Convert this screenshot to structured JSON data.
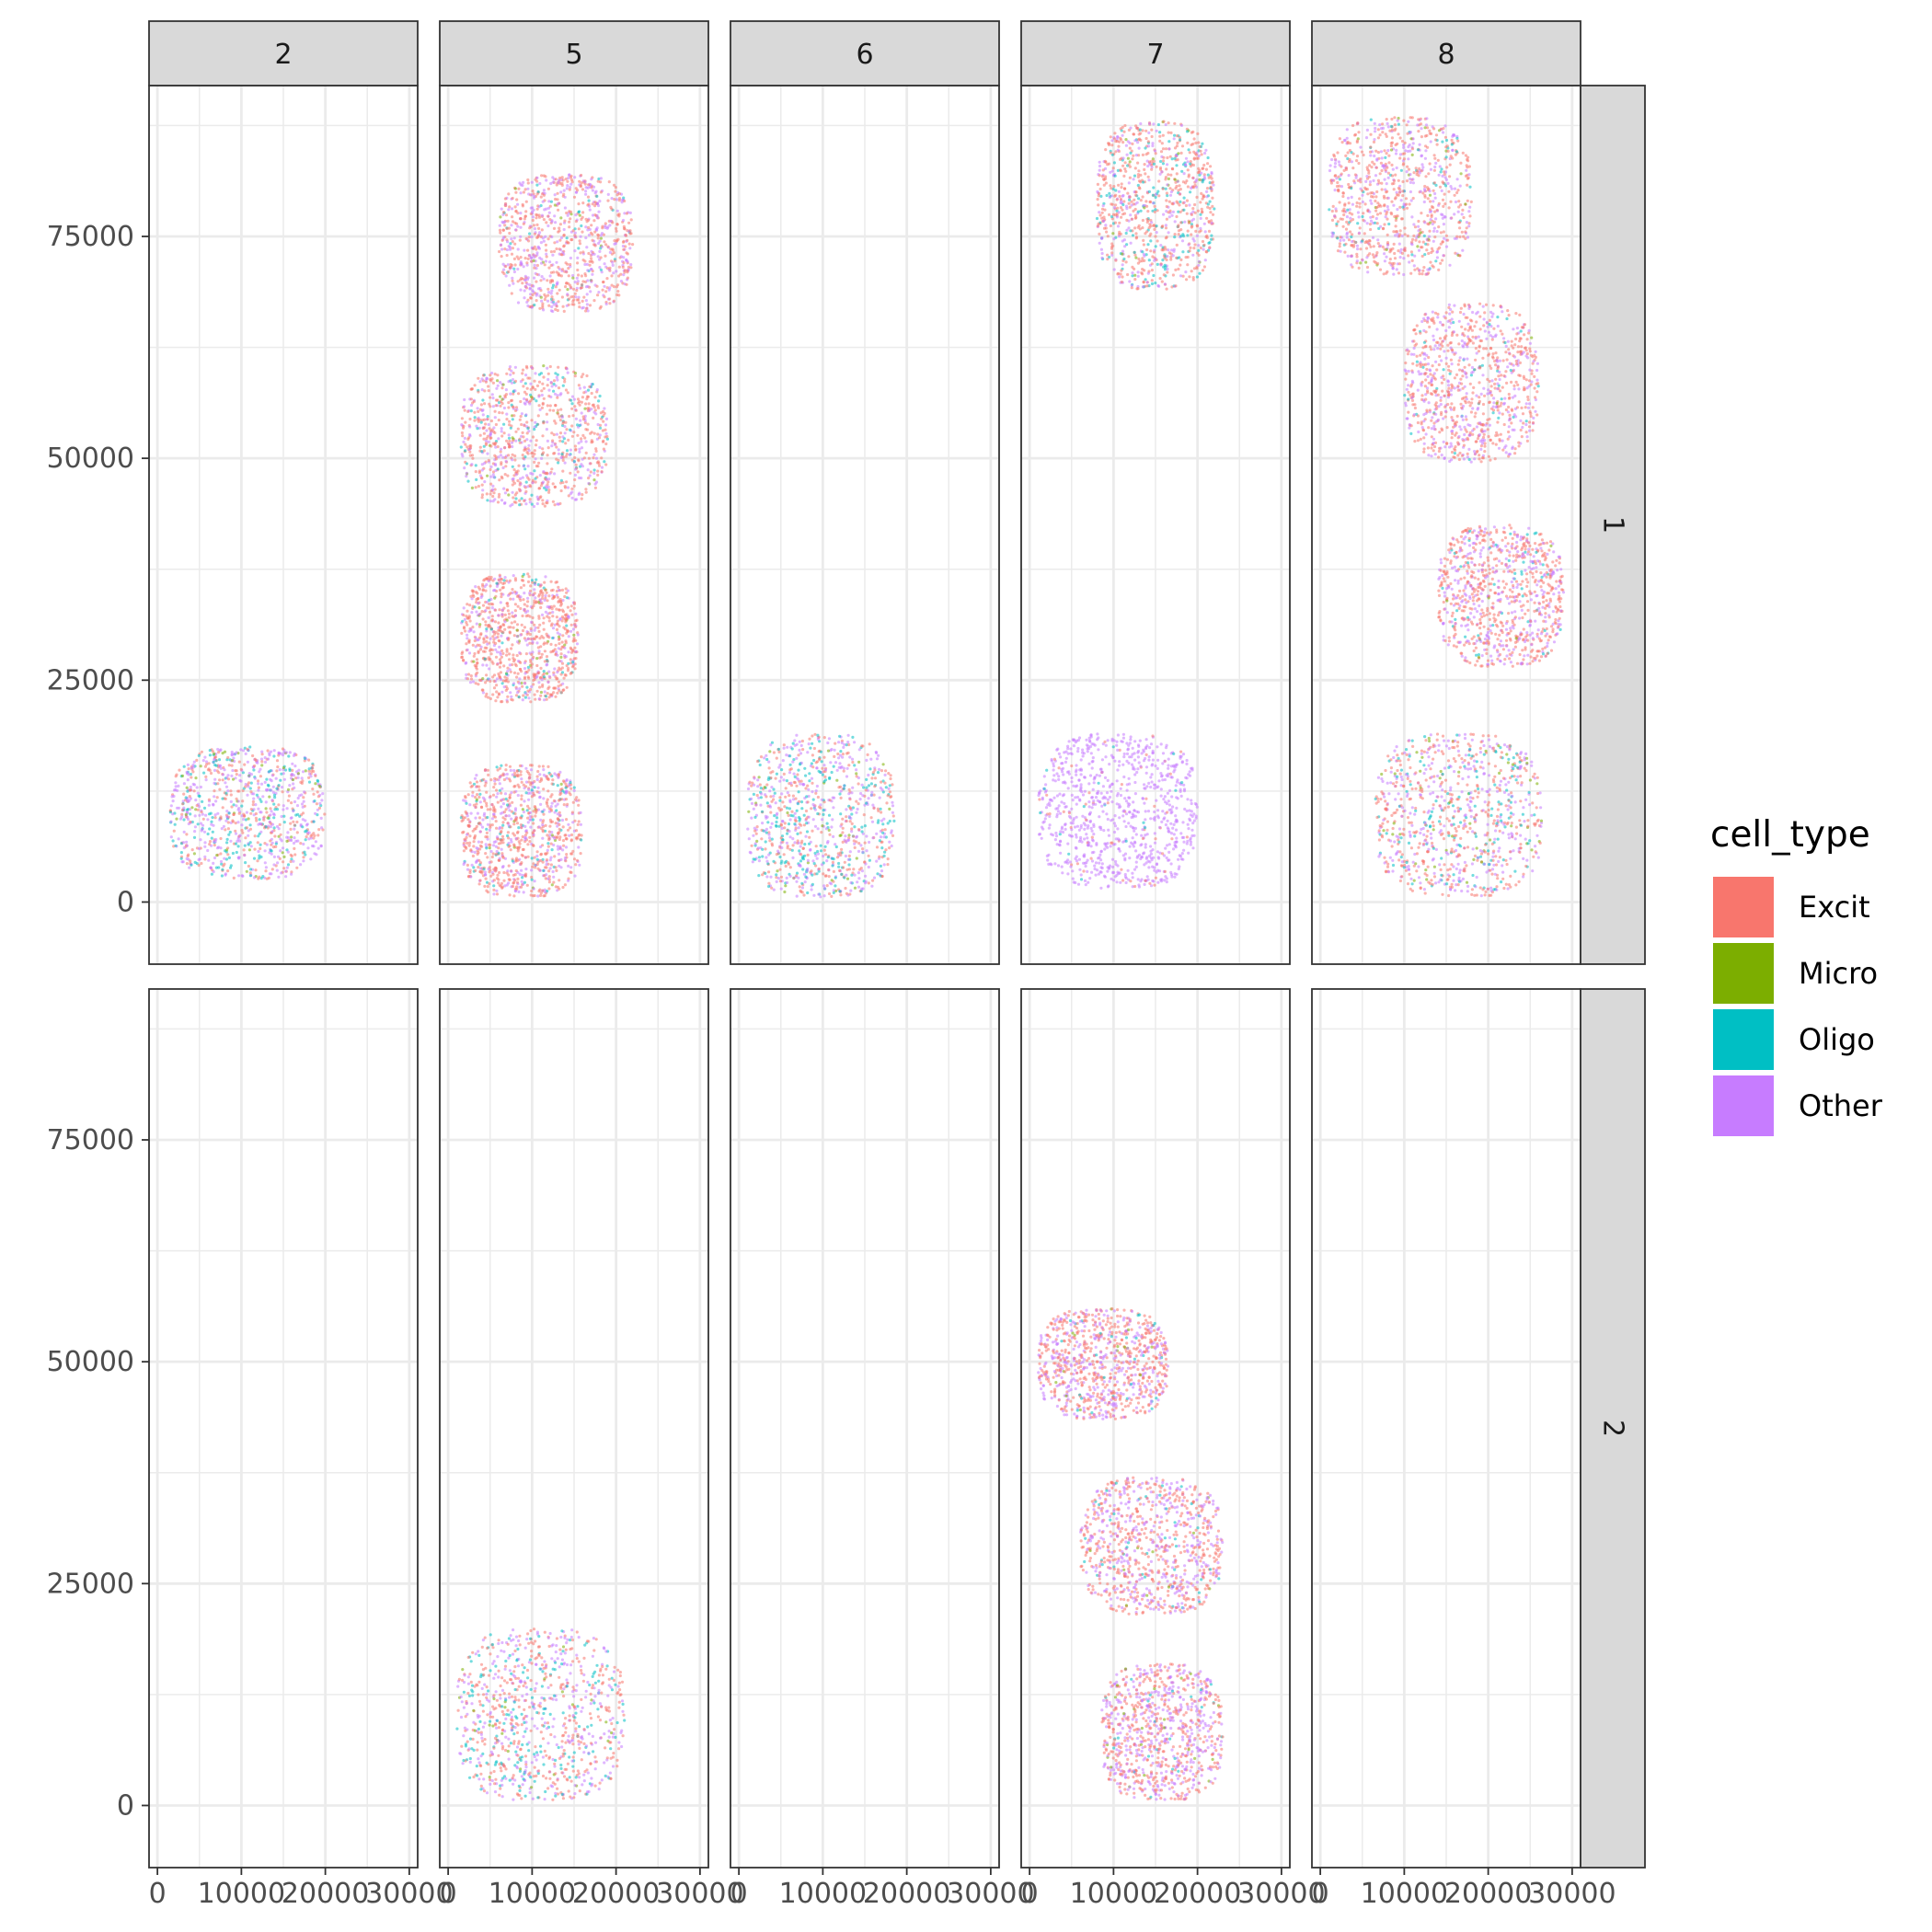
{
  "chart_data": {
    "type": "scatter",
    "title": "",
    "xlabel": "",
    "ylabel": "",
    "facet_columns": [
      "2",
      "5",
      "6",
      "7",
      "8"
    ],
    "facet_rows": [
      "1",
      "2"
    ],
    "xlim": [
      -1000,
      31000
    ],
    "ylim": [
      -7000,
      92000
    ],
    "x_ticks": [
      0,
      10000,
      20000,
      30000
    ],
    "x_tick_labels": [
      "0",
      "10000",
      "20000",
      "30000"
    ],
    "y_ticks": [
      0,
      25000,
      50000,
      75000
    ],
    "y_tick_labels": [
      "0",
      "25000",
      "50000",
      "75000"
    ],
    "grid": true,
    "legend": {
      "title": "cell_type",
      "position": "right",
      "entries": [
        {
          "label": "Excit",
          "color": "#F8766D"
        },
        {
          "label": "Micro",
          "color": "#7CAE00"
        },
        {
          "label": "Oligo",
          "color": "#00BFC4"
        },
        {
          "label": "Other",
          "color": "#C77CFF"
        }
      ]
    },
    "sections": [
      {
        "row": "1",
        "col": "2",
        "x_range": [
          1500,
          20000
        ],
        "y_range": [
          2500,
          17500
        ],
        "mix": {
          "Excit": 0.3,
          "Micro": 0.05,
          "Oligo": 0.2,
          "Other": 0.45
        }
      },
      {
        "row": "1",
        "col": "5",
        "x_range": [
          6000,
          22000
        ],
        "y_range": [
          66500,
          82000
        ],
        "mix": {
          "Excit": 0.55,
          "Micro": 0.01,
          "Oligo": 0.04,
          "Other": 0.4
        }
      },
      {
        "row": "1",
        "col": "5",
        "x_range": [
          1500,
          19000
        ],
        "y_range": [
          44500,
          60500
        ],
        "mix": {
          "Excit": 0.55,
          "Micro": 0.03,
          "Oligo": 0.12,
          "Other": 0.3
        }
      },
      {
        "row": "1",
        "col": "5",
        "x_range": [
          1500,
          15500
        ],
        "y_range": [
          22500,
          37000
        ],
        "mix": {
          "Excit": 0.65,
          "Micro": 0.03,
          "Oligo": 0.05,
          "Other": 0.27
        }
      },
      {
        "row": "1",
        "col": "5",
        "x_range": [
          1500,
          16000
        ],
        "y_range": [
          500,
          15500
        ],
        "mix": {
          "Excit": 0.6,
          "Micro": 0.02,
          "Oligo": 0.08,
          "Other": 0.3
        }
      },
      {
        "row": "1",
        "col": "6",
        "x_range": [
          1000,
          18500
        ],
        "y_range": [
          500,
          19000
        ],
        "mix": {
          "Excit": 0.3,
          "Micro": 0.03,
          "Oligo": 0.27,
          "Other": 0.4
        }
      },
      {
        "row": "1",
        "col": "7",
        "x_range": [
          8000,
          22000
        ],
        "y_range": [
          69000,
          88000
        ],
        "mix": {
          "Excit": 0.55,
          "Micro": 0.03,
          "Oligo": 0.17,
          "Other": 0.25
        }
      },
      {
        "row": "1",
        "col": "7",
        "x_range": [
          1000,
          20000
        ],
        "y_range": [
          1500,
          19000
        ],
        "mix": {
          "Excit": 0.05,
          "Micro": 0.0,
          "Oligo": 0.02,
          "Other": 0.93
        }
      },
      {
        "row": "1",
        "col": "8",
        "x_range": [
          1000,
          18000
        ],
        "y_range": [
          70500,
          88500
        ],
        "mix": {
          "Excit": 0.55,
          "Micro": 0.03,
          "Oligo": 0.07,
          "Other": 0.35
        }
      },
      {
        "row": "1",
        "col": "8",
        "x_range": [
          10000,
          26000
        ],
        "y_range": [
          49500,
          67500
        ],
        "mix": {
          "Excit": 0.6,
          "Micro": 0.01,
          "Oligo": 0.04,
          "Other": 0.35
        }
      },
      {
        "row": "1",
        "col": "8",
        "x_range": [
          14000,
          29000
        ],
        "y_range": [
          26500,
          42500
        ],
        "mix": {
          "Excit": 0.55,
          "Micro": 0.01,
          "Oligo": 0.04,
          "Other": 0.4
        }
      },
      {
        "row": "1",
        "col": "8",
        "x_range": [
          6500,
          26500
        ],
        "y_range": [
          500,
          19000
        ],
        "mix": {
          "Excit": 0.45,
          "Micro": 0.05,
          "Oligo": 0.15,
          "Other": 0.35
        }
      },
      {
        "row": "2",
        "col": "5",
        "x_range": [
          1000,
          21000
        ],
        "y_range": [
          500,
          20000
        ],
        "mix": {
          "Excit": 0.4,
          "Micro": 0.02,
          "Oligo": 0.23,
          "Other": 0.35
        }
      },
      {
        "row": "2",
        "col": "7",
        "x_range": [
          1000,
          16500
        ],
        "y_range": [
          43500,
          56000
        ],
        "mix": {
          "Excit": 0.55,
          "Micro": 0.02,
          "Oligo": 0.03,
          "Other": 0.4
        }
      },
      {
        "row": "2",
        "col": "7",
        "x_range": [
          6000,
          23000
        ],
        "y_range": [
          21500,
          37000
        ],
        "mix": {
          "Excit": 0.55,
          "Micro": 0.01,
          "Oligo": 0.04,
          "Other": 0.4
        }
      },
      {
        "row": "2",
        "col": "7",
        "x_range": [
          8500,
          23000
        ],
        "y_range": [
          500,
          16000
        ],
        "mix": {
          "Excit": 0.45,
          "Micro": 0.02,
          "Oligo": 0.03,
          "Other": 0.5
        }
      }
    ]
  }
}
